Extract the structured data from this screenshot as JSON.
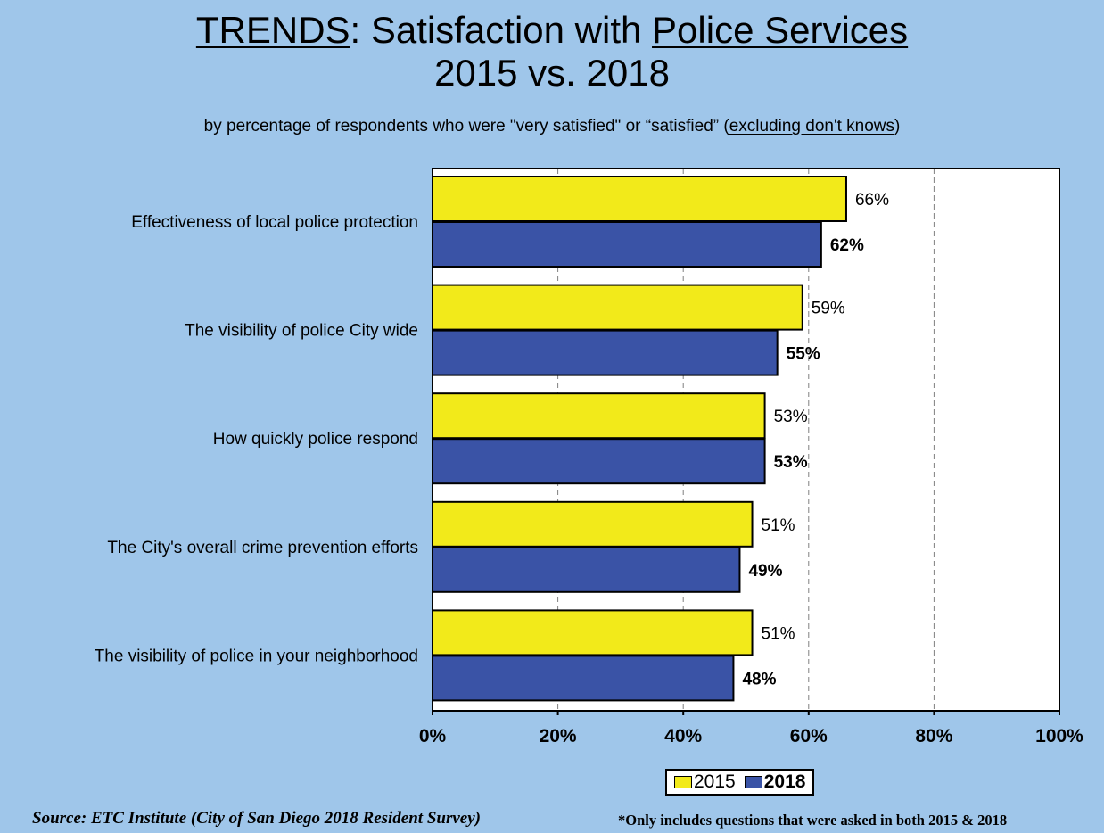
{
  "title": {
    "part1": "TRENDS",
    "part2": ":  Satisfaction with ",
    "part3": "Police Services",
    "line2": "2015 vs. 2018"
  },
  "subtitle": {
    "main": "by percentage of respondents who were \"very satisfied\" or “satisfied” (",
    "underlined": "excluding don't knows",
    "end": ")"
  },
  "colors": {
    "background": "#9fc6ea",
    "series_2015": "#f2ea1a",
    "series_2018": "#3a53a6",
    "plot_area": "#ffffff"
  },
  "chart_data": {
    "type": "bar",
    "orientation": "horizontal",
    "categories": [
      "Effectiveness of local police protection",
      "The visibility of police City wide",
      "How quickly police respond",
      "The City's overall crime prevention efforts",
      "The visibility of police in your neighborhood"
    ],
    "series": [
      {
        "name": "2015",
        "values": [
          66,
          59,
          53,
          51,
          51
        ],
        "labels": [
          "66%",
          "59%",
          "53%",
          "51%",
          "51%"
        ]
      },
      {
        "name": "2018",
        "values": [
          62,
          55,
          53,
          49,
          48
        ],
        "labels": [
          "62%",
          "55%",
          "53%",
          "49%",
          "48%"
        ]
      }
    ],
    "xlim": [
      0,
      100
    ],
    "xticks": [
      "0%",
      "20%",
      "40%",
      "60%",
      "80%",
      "100%"
    ],
    "grid": "vertical dashed",
    "legend": "bottom-right"
  },
  "legend": {
    "label_2015": "2015",
    "label_2018": "2018"
  },
  "footer": {
    "source": "Source:  ETC Institute (City of San Diego 2018 Resident Survey)",
    "note": "*Only includes questions that were asked in both 2015 & 2018"
  }
}
